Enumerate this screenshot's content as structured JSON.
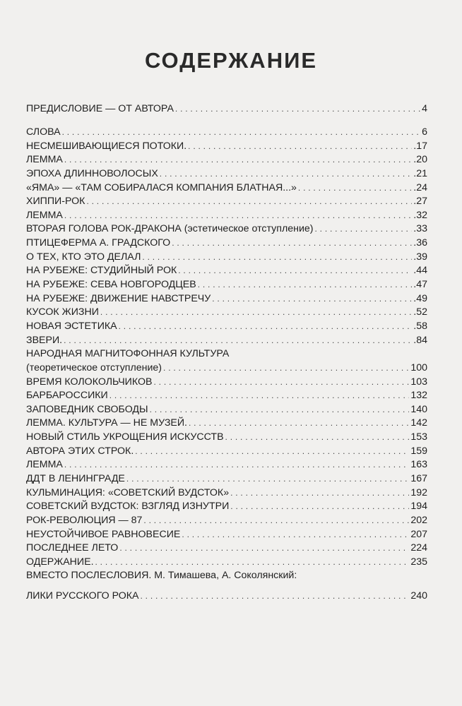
{
  "title": "СОДЕРЖАНИЕ",
  "preface": {
    "label": "ПРЕДИСЛОВИЕ — ОТ АВТОРА",
    "page": "4"
  },
  "entries": [
    {
      "label": "СЛОВА",
      "page": "6"
    },
    {
      "label": "НЕСМЕШИВАЮЩИЕСЯ ПОТОКИ.",
      "page": ".17"
    },
    {
      "label": "ЛЕММА",
      "page": ".20"
    },
    {
      "label": "ЭПОХА ДЛИННОВОЛОСЫХ",
      "page": ".21"
    },
    {
      "label": "«ЯМА» — «ТАМ СОБИРАЛАСЯ КОМПАНИЯ БЛАТНАЯ...»",
      "page": ".24"
    },
    {
      "label": "ХИППИ-РОК",
      "page": ".27"
    },
    {
      "label": "ЛЕММА",
      "page": ".32"
    },
    {
      "label": "ВТОРАЯ ГОЛОВА РОК-ДРАКОНА (эстетическое отступление)",
      "page": ".33"
    },
    {
      "label": "ПТИЦЕФЕРМА А. ГРАДСКОГО",
      "page": ".36"
    },
    {
      "label": "О ТЕХ, КТО ЭТО ДЕЛАЛ",
      "page": ".39"
    },
    {
      "label": "НА РУБЕЖЕ: СТУДИЙНЫЙ РОК",
      "page": ".44"
    },
    {
      "label": "НА РУБЕЖЕ: СЕВА НОВГОРОДЦЕВ",
      "page": ".47"
    },
    {
      "label": "НА РУБЕЖЕ: ДВИЖЕНИЕ НАВСТРЕЧУ",
      "page": ".49"
    },
    {
      "label": "КУСОК ЖИЗНИ",
      "page": ".52"
    },
    {
      "label": "НОВАЯ ЭСТЕТИКА",
      "page": ".58"
    },
    {
      "label": "ЗВЕРИ.",
      "page": ".84"
    },
    {
      "label": "НАРОДНАЯ МАГНИТОФОННАЯ КУЛЬТУРА",
      "page": ""
    },
    {
      "label": "(теоретическое отступление)",
      "page": "100"
    },
    {
      "label": "ВРЕМЯ КОЛОКОЛЬЧИКОВ",
      "page": "103"
    },
    {
      "label": "БАРБАРОССИКИ",
      "page": "132"
    },
    {
      "label": "ЗАПОВЕДНИК СВОБОДЫ",
      "page": "140"
    },
    {
      "label": "ЛЕММА. КУЛЬТУРА — НЕ МУЗЕЙ.",
      "page": "142"
    },
    {
      "label": "НОВЫЙ СТИЛЬ УКРОЩЕНИЯ ИСКУССТВ",
      "page": "153"
    },
    {
      "label": "АВТОРА ЭТИХ СТРОК.",
      "page": "159"
    },
    {
      "label": "ЛЕММА",
      "page": "163"
    },
    {
      "label": "ДДТ В ЛЕНИНГРАДЕ",
      "page": "167"
    },
    {
      "label": "КУЛЬМИНАЦИЯ: «СОВЕТСКИЙ ВУДСТОК»",
      "page": "192"
    },
    {
      "label": "СОВЕТСКИЙ ВУДСТОК: ВЗГЛЯД ИЗНУТРИ",
      "page": "194"
    },
    {
      "label": "РОК-РЕВОЛЮЦИЯ — 87",
      "page": "202"
    },
    {
      "label": "НЕУСТОЙЧИВОЕ РАВНОВЕСИЕ",
      "page": "207"
    },
    {
      "label": "ПОСЛЕДНЕЕ ЛЕТО",
      "page": "224"
    },
    {
      "label": "ОДЕРЖАНИЕ.",
      "page": "235"
    }
  ],
  "afterword": [
    {
      "label": "ВМЕСТО ПОСЛЕСЛОВИЯ. М. Тимашева, А. Соколянский:",
      "page": ""
    },
    {
      "label": "ЛИКИ РУССКОГО РОКА",
      "page": "240"
    }
  ]
}
